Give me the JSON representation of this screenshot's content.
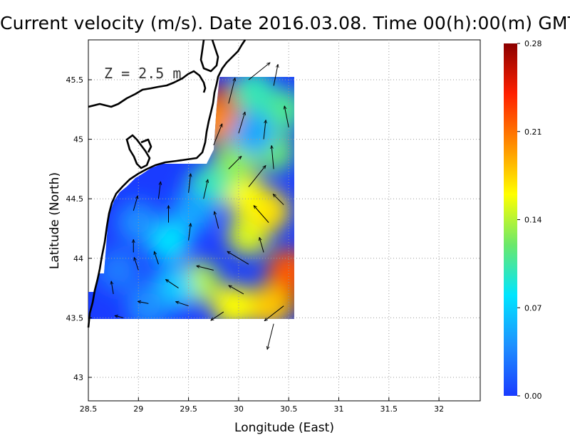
{
  "title": "Current velocity (m/s). Date 2016.03.08. Time 00(h):00(m) GMT",
  "chart_data": {
    "type": "heatmap",
    "xlabel": "Longitude (East)",
    "ylabel": "Latitude (North)",
    "annotation": "Z = 2.5 m",
    "xlim": [
      28.5,
      34.4
    ],
    "ylim": [
      42.8,
      45.8
    ],
    "x_ticks": [
      "28.5",
      "29",
      "29.5",
      "30",
      "30.5",
      "31",
      "31.5",
      "32"
    ],
    "y_ticks": [
      "43",
      "43.5",
      "44",
      "44.5",
      "45",
      "45.5"
    ],
    "colorbar": {
      "min": 0.0,
      "max": 0.28,
      "tick_labels": [
        "0.00",
        "0.07",
        "0.14",
        "0.21",
        "0.28"
      ],
      "colors": [
        "#1a3cff",
        "#1e90ff",
        "#00e5ff",
        "#6be86b",
        "#ffff00",
        "#ff8c00",
        "#ff2000",
        "#8b0000"
      ]
    },
    "grid": true,
    "speed_samples": [
      {
        "lon": 29.87,
        "lat": 45.3,
        "v": 0.26
      },
      {
        "lon": 29.75,
        "lat": 45.15,
        "v": 0.2
      },
      {
        "lon": 30.45,
        "lat": 43.7,
        "v": 0.27
      },
      {
        "lon": 30.5,
        "lat": 43.9,
        "v": 0.22
      },
      {
        "lon": 30.3,
        "lat": 43.6,
        "v": 0.18
      },
      {
        "lon": 29.95,
        "lat": 43.6,
        "v": 0.16
      },
      {
        "lon": 29.6,
        "lat": 43.8,
        "v": 0.14
      },
      {
        "lon": 30.1,
        "lat": 44.2,
        "v": 0.15
      },
      {
        "lon": 30.3,
        "lat": 44.4,
        "v": 0.17
      },
      {
        "lon": 30.05,
        "lat": 44.55,
        "v": 0.16
      },
      {
        "lon": 29.95,
        "lat": 44.8,
        "v": 0.13
      },
      {
        "lon": 30.35,
        "lat": 44.9,
        "v": 0.12
      },
      {
        "lon": 30.45,
        "lat": 45.25,
        "v": 0.11
      },
      {
        "lon": 30.15,
        "lat": 45.4,
        "v": 0.1
      },
      {
        "lon": 29.7,
        "lat": 44.6,
        "v": 0.1
      },
      {
        "lon": 29.3,
        "lat": 44.15,
        "v": 0.08
      },
      {
        "lon": 29.35,
        "lat": 43.75,
        "v": 0.07
      },
      {
        "lon": 29.0,
        "lat": 44.3,
        "v": 0.04
      },
      {
        "lon": 28.8,
        "lat": 43.9,
        "v": 0.03
      },
      {
        "lon": 29.1,
        "lat": 43.6,
        "v": 0.04
      },
      {
        "lon": 30.15,
        "lat": 45.05,
        "v": 0.05
      },
      {
        "lon": 29.55,
        "lat": 44.4,
        "v": 0.05
      }
    ],
    "vectors": [
      {
        "lon": 29.9,
        "lat": 45.3,
        "u": 0.15,
        "v": 0.6
      },
      {
        "lon": 30.1,
        "lat": 45.5,
        "u": 0.5,
        "v": 0.4
      },
      {
        "lon": 30.35,
        "lat": 45.45,
        "u": 0.1,
        "v": 0.5
      },
      {
        "lon": 30.5,
        "lat": 45.1,
        "u": -0.1,
        "v": 0.5
      },
      {
        "lon": 29.75,
        "lat": 44.95,
        "u": 0.2,
        "v": 0.5
      },
      {
        "lon": 30.1,
        "lat": 44.6,
        "u": 0.4,
        "v": 0.5
      },
      {
        "lon": 30.35,
        "lat": 44.75,
        "u": -0.05,
        "v": 0.55
      },
      {
        "lon": 29.5,
        "lat": 44.55,
        "u": 0.05,
        "v": 0.45
      },
      {
        "lon": 29.2,
        "lat": 44.5,
        "u": 0.05,
        "v": 0.4
      },
      {
        "lon": 28.95,
        "lat": 44.4,
        "u": 0.1,
        "v": 0.35
      },
      {
        "lon": 29.5,
        "lat": 44.15,
        "u": 0.05,
        "v": 0.4
      },
      {
        "lon": 29.8,
        "lat": 44.25,
        "u": -0.1,
        "v": 0.4
      },
      {
        "lon": 30.3,
        "lat": 44.3,
        "u": -0.35,
        "v": 0.4
      },
      {
        "lon": 30.1,
        "lat": 43.95,
        "u": -0.5,
        "v": 0.3
      },
      {
        "lon": 29.75,
        "lat": 43.9,
        "u": -0.4,
        "v": 0.1
      },
      {
        "lon": 29.4,
        "lat": 43.75,
        "u": -0.3,
        "v": 0.2
      },
      {
        "lon": 29.0,
        "lat": 43.9,
        "u": -0.1,
        "v": 0.3
      },
      {
        "lon": 28.75,
        "lat": 43.7,
        "u": -0.05,
        "v": 0.3
      },
      {
        "lon": 30.05,
        "lat": 43.7,
        "u": -0.35,
        "v": 0.2
      },
      {
        "lon": 30.45,
        "lat": 43.6,
        "u": -0.45,
        "v": -0.35
      },
      {
        "lon": 30.35,
        "lat": 43.45,
        "u": -0.15,
        "v": -0.6
      },
      {
        "lon": 29.85,
        "lat": 43.55,
        "u": -0.3,
        "v": -0.2
      },
      {
        "lon": 29.5,
        "lat": 43.6,
        "u": -0.3,
        "v": 0.1
      },
      {
        "lon": 29.1,
        "lat": 43.62,
        "u": -0.25,
        "v": 0.05
      },
      {
        "lon": 28.85,
        "lat": 43.5,
        "u": -0.2,
        "v": 0.05
      },
      {
        "lon": 30.25,
        "lat": 44.05,
        "u": -0.1,
        "v": 0.35
      },
      {
        "lon": 30.45,
        "lat": 44.45,
        "u": -0.25,
        "v": 0.25
      },
      {
        "lon": 29.3,
        "lat": 44.3,
        "u": 0.0,
        "v": 0.4
      },
      {
        "lon": 29.65,
        "lat": 44.5,
        "u": 0.1,
        "v": 0.45
      },
      {
        "lon": 30.0,
        "lat": 45.05,
        "u": 0.15,
        "v": 0.5
      },
      {
        "lon": 30.25,
        "lat": 45.0,
        "u": 0.05,
        "v": 0.45
      },
      {
        "lon": 29.9,
        "lat": 44.75,
        "u": 0.3,
        "v": 0.3
      },
      {
        "lon": 28.95,
        "lat": 44.05,
        "u": 0.0,
        "v": 0.3
      },
      {
        "lon": 29.2,
        "lat": 43.95,
        "u": -0.1,
        "v": 0.3
      }
    ]
  }
}
